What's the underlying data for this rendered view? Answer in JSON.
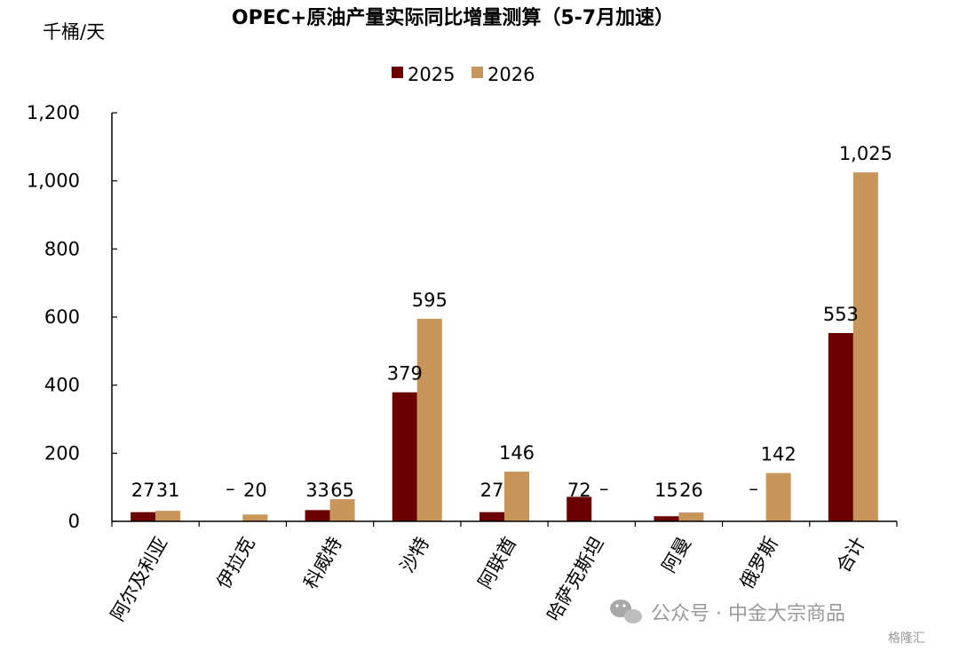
{
  "chart_data": {
    "type": "bar",
    "title": "OPEC+原油产量实际同比增量测算（5-7月加速）",
    "unit": "千桶/天",
    "ylim": [
      0,
      1200
    ],
    "yticks": [
      0,
      200,
      400,
      600,
      800,
      1000,
      1200
    ],
    "ytick_labels": [
      "0",
      "200",
      "400",
      "600",
      "800",
      "1,000",
      "1,200"
    ],
    "categories": [
      "阿尔及利亚",
      "伊拉克",
      "科威特",
      "沙特",
      "阿联酋",
      "哈萨克斯坦",
      "阿曼",
      "俄罗斯",
      "合计"
    ],
    "series": [
      {
        "name": "2025",
        "color": "#6b0000",
        "values": [
          27,
          null,
          33,
          379,
          27,
          72,
          15,
          null,
          553
        ],
        "labels": [
          "27",
          "–",
          "33",
          "379",
          "27",
          "72",
          "15",
          "–",
          "553"
        ]
      },
      {
        "name": "2026",
        "color": "#c8965a",
        "values": [
          31,
          20,
          65,
          595,
          146,
          null,
          26,
          142,
          1025
        ],
        "labels": [
          "31",
          "20",
          "65",
          "595",
          "146",
          "–",
          "26",
          "142",
          "1,025"
        ]
      }
    ],
    "legend_position": "top-center",
    "grid": false
  },
  "watermark": {
    "text": "公众号 · 中金大宗商品",
    "corner_text": "格隆汇",
    "icon": "wechat-icon"
  }
}
